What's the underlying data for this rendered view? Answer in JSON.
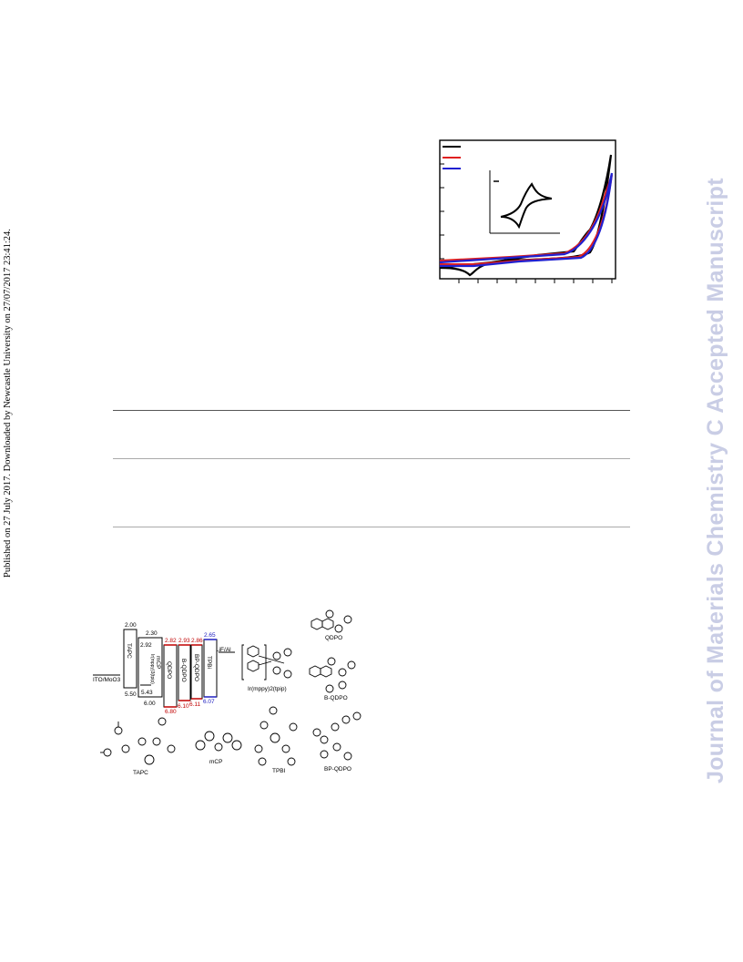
{
  "sidebar_left": {
    "text": "Published on 27 July 2017. Downloaded by Newcastle University on 27/07/2017 23:41:24."
  },
  "sidebar_right": {
    "text": "Journal of Materials Chemistry C Accepted Manuscript"
  },
  "colors": {
    "accent_watermark": "#c9cde5",
    "series_black": "#000000",
    "series_red": "#e02020",
    "series_blue": "#2020d0"
  },
  "cv_chart": {
    "type": "line",
    "series": [
      {
        "color": "#000000"
      },
      {
        "color": "#e02020"
      },
      {
        "color": "#2020d0"
      }
    ]
  },
  "energy_diagram": {
    "electrode_left": "ITO/MoO3",
    "electrode_right": "LiF/Al",
    "layers": [
      {
        "name": "TAPC",
        "lumo": "2.00",
        "homo": "5.50"
      },
      {
        "name": "Ir(mppy)3(tpip) mCP",
        "lumo": "2.30",
        "homo": "6.00"
      },
      {
        "name": "Ir(mppy)3(tpip) inner",
        "lumo": "2.92",
        "homo": "5.43"
      },
      {
        "name": "QDPO",
        "lumo": "2.82",
        "homo": "6.80"
      },
      {
        "name": "B-QDPO",
        "lumo": "2.93",
        "homo": "6.10"
      },
      {
        "name": "BP-QDPO",
        "lumo": "2.86",
        "homo": "6.11"
      },
      {
        "name": "TPBi",
        "lumo": "2.65",
        "homo": "6.07"
      }
    ],
    "molecule_labels": [
      "Ir(mppy)2(tpip)",
      "QDPO",
      "B-QDPO",
      "TAPC",
      "mCP",
      "TPBI",
      "BP-QDPO"
    ]
  }
}
